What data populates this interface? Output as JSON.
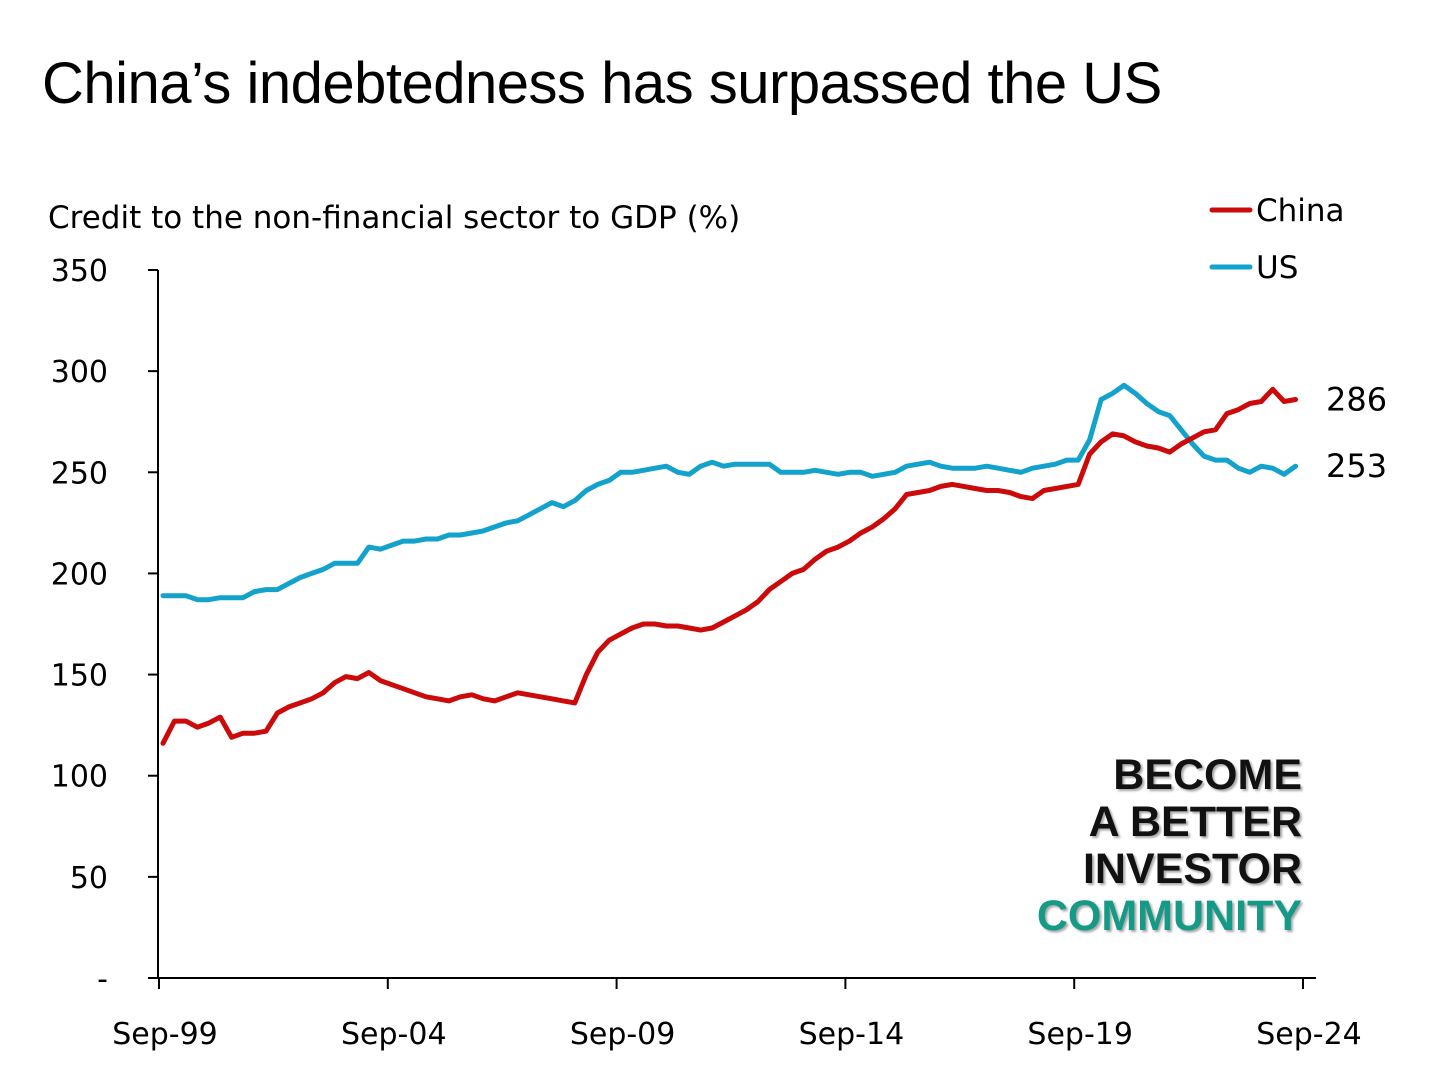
{
  "title": "China’s indebtedness has surpassed the US",
  "watermark": {
    "lines": [
      "BECOME",
      "A BETTER",
      "INVESTOR"
    ],
    "accent_line": "COMMUNITY",
    "color": "#111111",
    "accent_color": "#149a87"
  },
  "chart_data": {
    "type": "line",
    "ylabel": "Credit to the non-financial sector to GDP (%)",
    "xlabel": "",
    "ylim": [
      0,
      350
    ],
    "y_ticks": [
      0,
      50,
      100,
      150,
      200,
      250,
      300,
      350
    ],
    "y_tick_labels": [
      "-",
      "50",
      "100",
      "150",
      "200",
      "250",
      "300",
      "350"
    ],
    "x_tick_labels": [
      "Sep-99",
      "Sep-04",
      "Sep-09",
      "Sep-14",
      "Sep-19",
      "Sep-24"
    ],
    "x_range": [
      "Sep-99",
      "Dec-24"
    ],
    "frequency": "quarterly",
    "grid": false,
    "legend_position": "top-right",
    "series": [
      {
        "name": "China",
        "color": "#cc0a0a",
        "end_label": "286",
        "values": [
          116,
          127,
          127,
          124,
          126,
          129,
          119,
          121,
          121,
          122,
          131,
          134,
          136,
          138,
          141,
          146,
          149,
          148,
          151,
          147,
          145,
          143,
          141,
          139,
          138,
          137,
          139,
          140,
          138,
          137,
          139,
          141,
          140,
          139,
          138,
          137,
          136,
          150,
          161,
          167,
          170,
          173,
          175,
          175,
          174,
          174,
          173,
          172,
          173,
          176,
          179,
          182,
          186,
          192,
          196,
          200,
          202,
          207,
          211,
          213,
          216,
          220,
          223,
          227,
          232,
          239,
          240,
          241,
          243,
          244,
          243,
          242,
          241,
          241,
          240,
          238,
          237,
          241,
          242,
          243,
          244,
          259,
          265,
          269,
          268,
          265,
          263,
          262,
          260,
          264,
          267,
          270,
          271,
          279,
          281,
          284,
          285,
          291,
          285,
          286
        ]
      },
      {
        "name": "US",
        "color": "#12a2cc",
        "end_label": "253",
        "values": [
          189,
          189,
          189,
          187,
          187,
          188,
          188,
          188,
          191,
          192,
          192,
          195,
          198,
          200,
          202,
          205,
          205,
          205,
          213,
          212,
          214,
          216,
          216,
          217,
          217,
          219,
          219,
          220,
          221,
          223,
          225,
          226,
          229,
          232,
          235,
          233,
          236,
          241,
          244,
          246,
          250,
          250,
          251,
          252,
          253,
          250,
          249,
          253,
          255,
          253,
          254,
          254,
          254,
          254,
          250,
          250,
          250,
          251,
          250,
          249,
          250,
          250,
          248,
          249,
          250,
          253,
          254,
          255,
          253,
          252,
          252,
          252,
          253,
          252,
          251,
          250,
          252,
          253,
          254,
          256,
          256,
          266,
          286,
          289,
          293,
          289,
          284,
          280,
          278,
          271,
          264,
          258,
          256,
          256,
          252,
          250,
          253,
          252,
          249,
          253
        ]
      }
    ]
  }
}
